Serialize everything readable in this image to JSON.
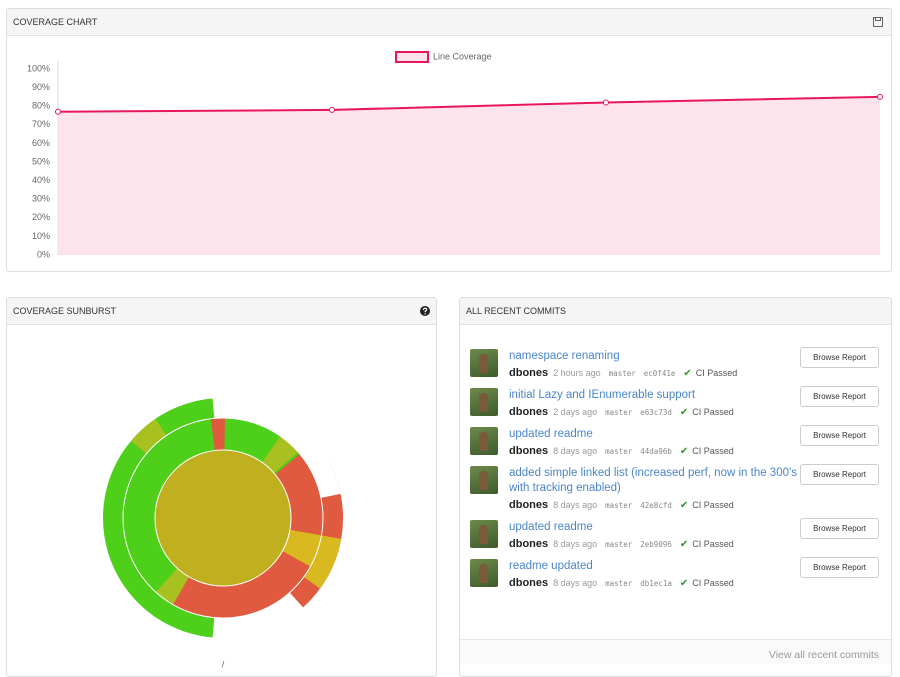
{
  "chart_data": {
    "type": "line",
    "categories": [
      null,
      null,
      null,
      null
    ],
    "series": [
      {
        "name": "Line Coverage",
        "color": "#e8175d",
        "fill": "#fde4ec",
        "values": [
          77,
          78,
          82,
          85
        ]
      }
    ],
    "ylim": [
      0,
      100
    ],
    "yticks": [
      {
        "value": 0,
        "label": "0%"
      },
      {
        "value": 10,
        "label": "10%"
      },
      {
        "value": 20,
        "label": "20%"
      },
      {
        "value": 30,
        "label": "30%"
      },
      {
        "value": 40,
        "label": "40%"
      },
      {
        "value": 50,
        "label": "50%"
      },
      {
        "value": 60,
        "label": "60%"
      },
      {
        "value": 70,
        "label": "70%"
      },
      {
        "value": 80,
        "label": "80%"
      },
      {
        "value": 90,
        "label": "90%"
      },
      {
        "value": 100,
        "label": "100%"
      }
    ],
    "grid": false,
    "legend": "top"
  },
  "panels": {
    "coverage_chart": {
      "title": "COVERAGE CHART"
    },
    "sunburst": {
      "title": "COVERAGE SUNBURST",
      "root_label": "/"
    },
    "commits": {
      "title": "ALL RECENT COMMITS",
      "view_all": "View all recent commits",
      "items": [
        {
          "title": "namespace renaming",
          "author": "dbones",
          "time": "2 hours ago",
          "branch": "master",
          "hash": "ec0f41e",
          "status": "CI Passed",
          "button": "Browse Report"
        },
        {
          "title": "initial Lazy and IEnumerable support",
          "author": "dbones",
          "time": "2 days ago",
          "branch": "master",
          "hash": "e63c73d",
          "status": "CI Passed",
          "button": "Browse Report"
        },
        {
          "title": "updated readme",
          "author": "dbones",
          "time": "8 days ago",
          "branch": "master",
          "hash": "44da96b",
          "status": "CI Passed",
          "button": "Browse Report"
        },
        {
          "title": "added simple linked list (increased perf, now in the 300's with tracking enabled)",
          "author": "dbones",
          "time": "8 days ago",
          "branch": "master",
          "hash": "42e8cfd",
          "status": "CI Passed",
          "button": "Browse Report"
        },
        {
          "title": "updated readme",
          "author": "dbones",
          "time": "8 days ago",
          "branch": "master",
          "hash": "2eb9096",
          "status": "CI Passed",
          "button": "Browse Report"
        },
        {
          "title": "readme updated",
          "author": "dbones",
          "time": "8 days ago",
          "branch": "master",
          "hash": "db1ec1a",
          "status": "CI Passed",
          "button": "Browse Report"
        }
      ]
    }
  }
}
